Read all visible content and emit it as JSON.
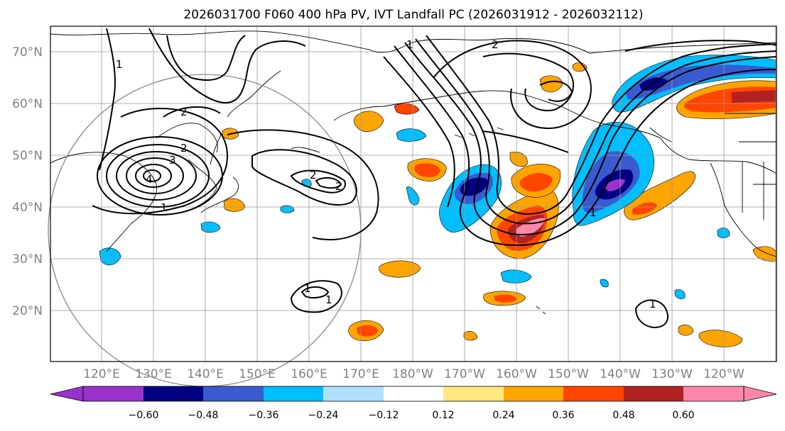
{
  "map": {
    "title": "2026031700 F060 400 hPa PV, IVT Landfall PC (2026031912 - 2026032112)",
    "lat_labels": [
      "70°N",
      "60°N",
      "50°N",
      "40°N",
      "30°N",
      "20°N"
    ],
    "lon_labels": [
      "120°E",
      "130°E",
      "140°E",
      "150°E",
      "160°E",
      "170°E",
      "180°W",
      "170°W",
      "160°W",
      "150°W",
      "140°W",
      "130°W",
      "120°W"
    ],
    "contour_labels": [
      "1",
      "2",
      "2",
      "3",
      "4",
      "1",
      "2",
      "2",
      "1",
      "1",
      "2",
      "1",
      "1",
      "1"
    ],
    "colorbar": {
      "ticks": [
        "−0.60",
        "−0.48",
        "−0.36",
        "−0.24",
        "−0.12",
        "0.12",
        "0.24",
        "0.36",
        "0.48",
        "0.60"
      ],
      "colors": [
        "#9932cc",
        "#000080",
        "#3a5bd0",
        "#00bfff",
        "#b0e0ff",
        "#ffffff",
        "#ffe680",
        "#ffa500",
        "#ff4500",
        "#b22222",
        "#ff88aa"
      ]
    },
    "colors": {
      "pos1": "#ffe680",
      "pos2": "#ffa500",
      "pos3": "#ff4500",
      "pos4": "#b22222",
      "pos5": "#ff88aa",
      "neg1": "#b0e0ff",
      "neg2": "#00bfff",
      "neg3": "#3a5bd0",
      "neg4": "#000080",
      "neg5": "#9932cc"
    }
  }
}
